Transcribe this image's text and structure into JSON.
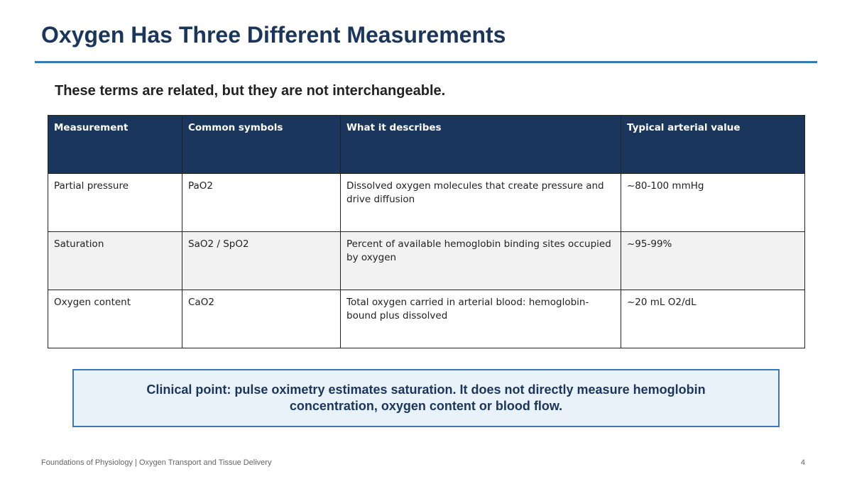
{
  "slide": {
    "title": "Oxygen Has Three Different Measurements",
    "subtitle": "These terms are related, but they are not interchangeable."
  },
  "table": {
    "headers": [
      "Measurement",
      "Common symbols",
      "What it describes",
      "Typical arterial value"
    ],
    "rows": [
      [
        "Partial pressure",
        "PaO2",
        "Dissolved oxygen molecules that create pressure and drive diffusion",
        "~80-100 mmHg"
      ],
      [
        "Saturation",
        "SaO2 / SpO2",
        "Percent of available hemoglobin binding sites occupied by oxygen",
        "~95-99%"
      ],
      [
        "Oxygen content",
        "CaO2",
        "Total oxygen carried in arterial blood: hemoglobin-bound plus dissolved",
        "~20 mL O2/dL"
      ]
    ]
  },
  "callout": {
    "text": "Clinical point: pulse oximetry estimates saturation. It does not directly measure hemoglobin concentration, oxygen content or blood flow."
  },
  "footer": {
    "text": "Foundations of Physiology | Oxygen Transport and Tissue Delivery",
    "page_number": "4"
  },
  "colors": {
    "title": "#1b365d",
    "accent_rule": "#3b78b9",
    "table_header_bg": "#1b365d",
    "striped_row_bg": "#f2f2f2",
    "callout_bg": "#e9f1f9",
    "callout_border": "#3b78b9"
  }
}
